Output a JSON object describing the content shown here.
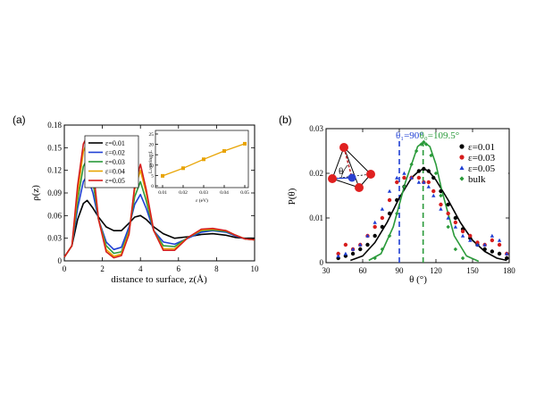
{
  "chart_data": [
    {
      "panel": "(a)",
      "type": "line",
      "xlabel": "distance to surface, z(Å)",
      "ylabel": "ρ(z)",
      "xlim": [
        0,
        10
      ],
      "ylim": [
        0,
        0.18
      ],
      "xticks": [
        "0",
        "2",
        "4",
        "6",
        "8",
        "10"
      ],
      "yticks": [
        "0",
        "0.03",
        "0.06",
        "0.09",
        "0.12",
        "0.15",
        "0.18"
      ],
      "legend_position": "top-left",
      "series": [
        {
          "name": "ε=0.01",
          "color": "#000000",
          "x": [
            0,
            0.4,
            0.7,
            1.0,
            1.2,
            1.5,
            1.8,
            2.2,
            2.6,
            3.0,
            3.4,
            3.7,
            4.0,
            4.3,
            4.7,
            5.2,
            5.8,
            6.5,
            7.2,
            7.8,
            8.5,
            9.0,
            9.5,
            10
          ],
          "y": [
            0.005,
            0.02,
            0.055,
            0.076,
            0.08,
            0.07,
            0.058,
            0.045,
            0.04,
            0.04,
            0.05,
            0.058,
            0.06,
            0.055,
            0.045,
            0.036,
            0.03,
            0.032,
            0.035,
            0.036,
            0.034,
            0.031,
            0.03,
            0.03
          ]
        },
        {
          "name": "ε=0.02",
          "color": "#1f3fd4",
          "x": [
            0,
            0.4,
            0.7,
            1.0,
            1.2,
            1.5,
            1.8,
            2.2,
            2.6,
            3.0,
            3.4,
            3.7,
            4.0,
            4.3,
            4.7,
            5.2,
            5.8,
            6.5,
            7.2,
            7.8,
            8.5,
            9.0,
            9.5,
            10
          ],
          "y": [
            0.005,
            0.02,
            0.07,
            0.105,
            0.113,
            0.09,
            0.055,
            0.025,
            0.015,
            0.018,
            0.045,
            0.075,
            0.088,
            0.07,
            0.04,
            0.025,
            0.022,
            0.03,
            0.038,
            0.04,
            0.038,
            0.033,
            0.029,
            0.028
          ]
        },
        {
          "name": "ε=0.03",
          "color": "#2a9a3a",
          "x": [
            0,
            0.4,
            0.7,
            1.0,
            1.2,
            1.5,
            1.8,
            2.2,
            2.6,
            3.0,
            3.4,
            3.7,
            4.0,
            4.3,
            4.7,
            5.2,
            5.8,
            6.5,
            7.2,
            7.8,
            8.5,
            9.0,
            9.5,
            10
          ],
          "y": [
            0.005,
            0.02,
            0.08,
            0.125,
            0.135,
            0.105,
            0.055,
            0.02,
            0.01,
            0.012,
            0.04,
            0.085,
            0.105,
            0.08,
            0.04,
            0.02,
            0.019,
            0.031,
            0.04,
            0.041,
            0.039,
            0.034,
            0.029,
            0.028
          ]
        },
        {
          "name": "ε=0.04",
          "color": "#e8a300",
          "x": [
            0,
            0.4,
            0.7,
            1.0,
            1.2,
            1.5,
            1.8,
            2.2,
            2.6,
            3.0,
            3.4,
            3.7,
            4.0,
            4.3,
            4.7,
            5.2,
            5.8,
            6.5,
            7.2,
            7.8,
            8.5,
            9.0,
            9.5,
            10
          ],
          "y": [
            0.005,
            0.02,
            0.09,
            0.145,
            0.157,
            0.12,
            0.055,
            0.015,
            0.006,
            0.009,
            0.038,
            0.095,
            0.12,
            0.09,
            0.04,
            0.016,
            0.016,
            0.031,
            0.041,
            0.042,
            0.04,
            0.034,
            0.029,
            0.028
          ]
        },
        {
          "name": "ε=0.05",
          "color": "#d61d1d",
          "x": [
            0,
            0.4,
            0.7,
            1.0,
            1.2,
            1.5,
            1.8,
            2.2,
            2.6,
            3.0,
            3.4,
            3.7,
            4.0,
            4.3,
            4.7,
            5.2,
            5.8,
            6.5,
            7.2,
            7.8,
            8.5,
            9.0,
            9.5,
            10
          ],
          "y": [
            0.005,
            0.02,
            0.1,
            0.155,
            0.165,
            0.125,
            0.055,
            0.012,
            0.004,
            0.007,
            0.035,
            0.1,
            0.128,
            0.095,
            0.04,
            0.014,
            0.014,
            0.031,
            0.042,
            0.043,
            0.04,
            0.034,
            0.029,
            0.028
          ]
        }
      ],
      "inset": {
        "type": "line",
        "xlabel": "ε (eV)",
        "ylabel": "Layering, L",
        "xlim": [
          0.01,
          0.05
        ],
        "ylim": [
          0,
          25
        ],
        "xticks": [
          "0.01",
          "0.02",
          "0.03",
          "0.04",
          "0.05"
        ],
        "yticks": [
          "0",
          "5",
          "10",
          "15",
          "20",
          "25"
        ],
        "color": "#e8a300",
        "x": [
          0.01,
          0.02,
          0.03,
          0.04,
          0.05
        ],
        "y": [
          4.8,
          8.5,
          12.8,
          16.8,
          20.3
        ]
      }
    },
    {
      "panel": "(b)",
      "type": "scatter",
      "xlabel": "θ (°)",
      "ylabel": "P(θ)",
      "xlim": [
        30,
        180
      ],
      "ylim": [
        0,
        0.03
      ],
      "xticks": [
        "30",
        "60",
        "90",
        "120",
        "150",
        "180"
      ],
      "yticks": [
        "0",
        "0.01",
        "0.02",
        "0.03"
      ],
      "legend_position": "top-right",
      "annotations": [
        {
          "text": "θ₁=90°",
          "x": 90,
          "color": "#1f3fd4"
        },
        {
          "text": "θ₀=109.5°",
          "x": 109.5,
          "color": "#2a9a3a"
        }
      ],
      "series": [
        {
          "name": "ε=0.01",
          "color": "#000000",
          "marker": "circle",
          "x": [
            40,
            46,
            52,
            58,
            64,
            70,
            76,
            82,
            88,
            94,
            100,
            106,
            110,
            114,
            118,
            124,
            130,
            136,
            142,
            148,
            154,
            160,
            166,
            172,
            178
          ],
          "y": [
            0.001,
            0.0015,
            0.002,
            0.003,
            0.004,
            0.006,
            0.008,
            0.011,
            0.014,
            0.017,
            0.019,
            0.0205,
            0.021,
            0.0205,
            0.019,
            0.016,
            0.013,
            0.01,
            0.0075,
            0.0055,
            0.004,
            0.003,
            0.0025,
            0.002,
            0.001
          ]
        },
        {
          "name": "ε=0.03",
          "color": "#d61d1d",
          "marker": "circle",
          "x": [
            40,
            46,
            52,
            58,
            64,
            70,
            76,
            82,
            88,
            94,
            100,
            106,
            110,
            114,
            118,
            124,
            130,
            136,
            142,
            148,
            154,
            160,
            166,
            172,
            178
          ],
          "y": [
            0.002,
            0.004,
            0.003,
            0.004,
            0.006,
            0.008,
            0.01,
            0.014,
            0.018,
            0.019,
            0.019,
            0.019,
            0.018,
            0.018,
            0.016,
            0.013,
            0.011,
            0.009,
            0.007,
            0.006,
            0.0045,
            0.004,
            0.005,
            0.004,
            0.002
          ]
        },
        {
          "name": "ε=0.05",
          "color": "#1f3fd4",
          "marker": "triangle",
          "x": [
            40,
            46,
            52,
            58,
            64,
            70,
            76,
            82,
            88,
            94,
            100,
            106,
            110,
            114,
            118,
            124,
            130,
            136,
            142,
            148,
            154,
            160,
            166,
            172,
            178
          ],
          "y": [
            0.0015,
            0.002,
            0.003,
            0.004,
            0.006,
            0.009,
            0.012,
            0.016,
            0.019,
            0.02,
            0.019,
            0.018,
            0.018,
            0.017,
            0.015,
            0.012,
            0.01,
            0.008,
            0.006,
            0.005,
            0.004,
            0.004,
            0.006,
            0.005,
            0.002
          ]
        },
        {
          "name": "bulk",
          "color": "#2a9a3a",
          "marker": "diamond",
          "x": [
            70,
            76,
            82,
            88,
            94,
            100,
            104,
            108,
            110,
            112,
            116,
            120,
            124,
            130,
            136,
            142
          ],
          "y": [
            0.001,
            0.003,
            0.006,
            0.011,
            0.017,
            0.022,
            0.025,
            0.0265,
            0.027,
            0.0265,
            0.024,
            0.02,
            0.015,
            0.008,
            0.003,
            0.001
          ]
        }
      ],
      "fit_curves": [
        {
          "name": "ε=0.01 fit",
          "color": "#000000",
          "x": [
            50,
            60,
            70,
            80,
            90,
            100,
            106,
            110,
            114,
            120,
            130,
            140,
            150,
            160,
            170,
            178
          ],
          "y": [
            0.0005,
            0.0015,
            0.0045,
            0.009,
            0.0145,
            0.019,
            0.0205,
            0.021,
            0.0205,
            0.0185,
            0.014,
            0.009,
            0.005,
            0.0025,
            0.001,
            0.0005
          ]
        },
        {
          "name": "bulk fit",
          "color": "#2a9a3a",
          "x": [
            65,
            75,
            85,
            95,
            100,
            105,
            110,
            115,
            120,
            125,
            135,
            145,
            155
          ],
          "y": [
            0.0005,
            0.002,
            0.008,
            0.018,
            0.022,
            0.026,
            0.027,
            0.026,
            0.022,
            0.016,
            0.006,
            0.0015,
            0.0003
          ]
        }
      ]
    }
  ]
}
